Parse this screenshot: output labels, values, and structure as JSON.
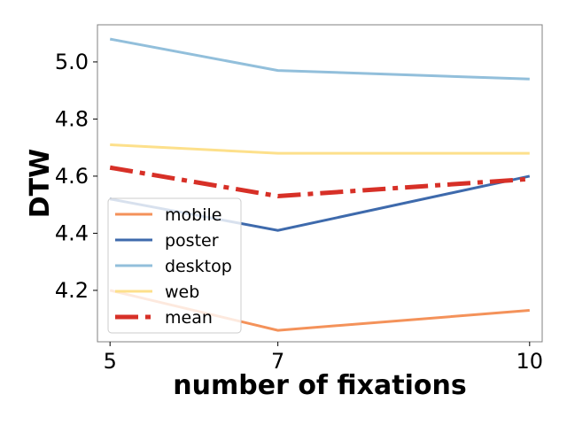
{
  "chart_data": {
    "type": "line",
    "title": "",
    "xlabel": "number of fixations",
    "ylabel": "DTW",
    "x": [
      5,
      7,
      10
    ],
    "x_ticks": [
      5,
      7,
      10
    ],
    "y_ticks": [
      4.2,
      4.4,
      4.6,
      4.8,
      5.0
    ],
    "y_tick_labels": [
      "4.2",
      "4.4",
      "4.6",
      "4.8",
      "5.0"
    ],
    "xlim": [
      4.85,
      10.15
    ],
    "ylim": [
      4.02,
      5.13
    ],
    "grid": false,
    "legend_position": "lower-left",
    "series": [
      {
        "name": "mobile",
        "values": [
          4.2,
          4.06,
          4.13
        ],
        "color": "#f4925a",
        "style": "solid"
      },
      {
        "name": "poster",
        "values": [
          4.52,
          4.41,
          4.6
        ],
        "color": "#3e6aac",
        "style": "solid"
      },
      {
        "name": "desktop",
        "values": [
          5.08,
          4.97,
          4.94
        ],
        "color": "#92bfdb",
        "style": "solid"
      },
      {
        "name": "web",
        "values": [
          4.71,
          4.68,
          4.68
        ],
        "color": "#fde08b",
        "style": "solid"
      },
      {
        "name": "mean",
        "values": [
          4.63,
          4.53,
          4.59
        ],
        "color": "#d73027",
        "style": "dashdot"
      }
    ]
  }
}
